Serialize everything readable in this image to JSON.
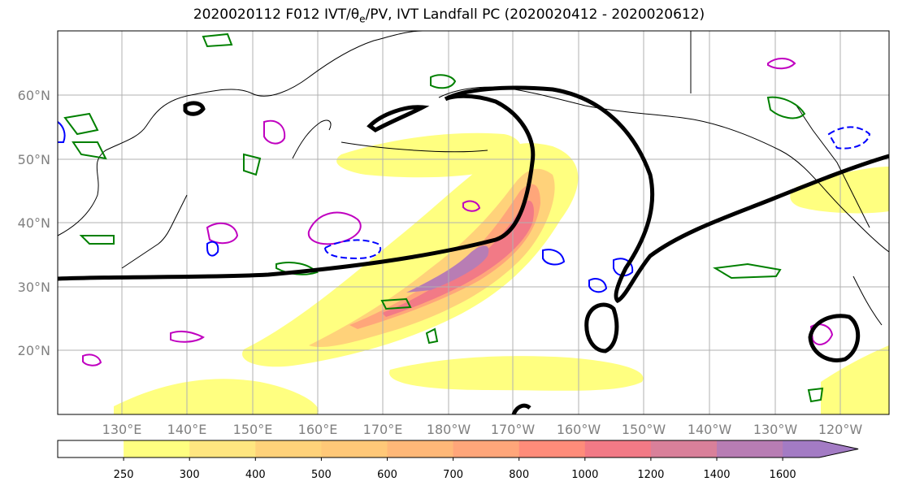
{
  "title": "2020020112 F012 IVT/θe/PV, IVT Landfall PC (2020020412 - 2020020612)",
  "map": {
    "lat_labels": [
      "60°N",
      "50°N",
      "40°N",
      "30°N",
      "20°N"
    ],
    "lon_labels": [
      "130°E",
      "140°E",
      "150°E",
      "160°E",
      "170°E",
      "180°W",
      "170°W",
      "160°W",
      "150°W",
      "140°W",
      "130°W",
      "120°W"
    ]
  },
  "colorbar": {
    "levels": [
      "250",
      "300",
      "400",
      "500",
      "600",
      "700",
      "800",
      "1000",
      "1200",
      "1400",
      "1600"
    ],
    "colors": [
      "#ffffff",
      "#ffff80",
      "#ffe680",
      "#ffd27a",
      "#ffc878",
      "#ffb878",
      "#ffa67a",
      "#ff8c7a",
      "#f27a86",
      "#d9809a",
      "#b87db4",
      "#a37bc4"
    ]
  },
  "contour_colors": {
    "landfall_pc": "#000000",
    "theta_e": "#008000",
    "pv_pos": "#c000c0",
    "pv_neg": "#0000ff"
  }
}
